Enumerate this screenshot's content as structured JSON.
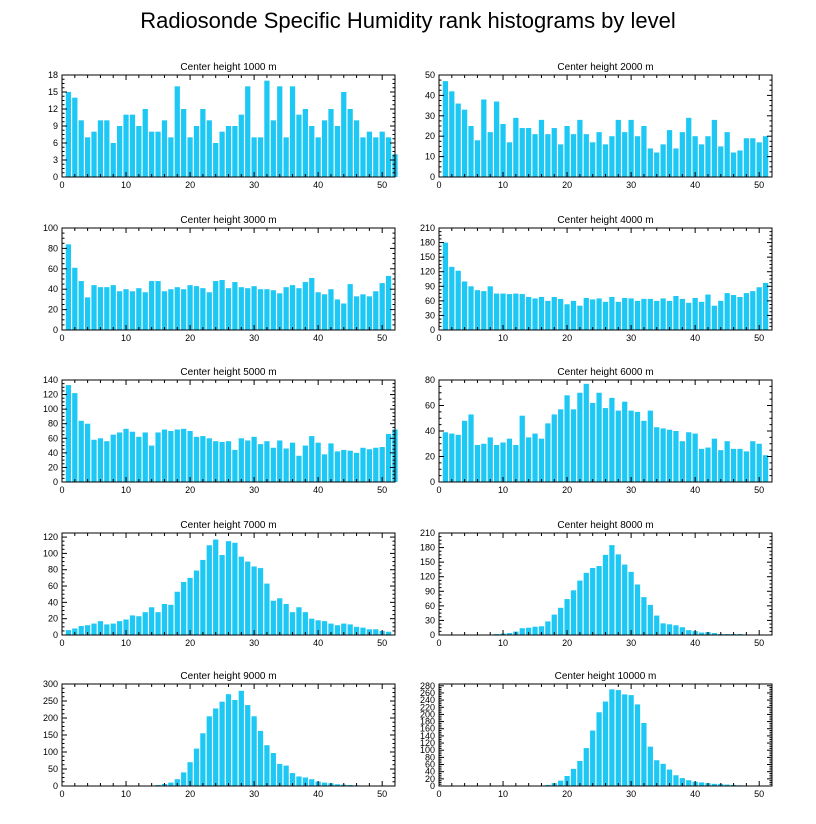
{
  "title": "Radiosonde Specific Humidity rank histograms by level",
  "colors": {
    "bar": "#1ec8f5",
    "axis": "#000000",
    "background": "#ffffff"
  },
  "chart_data": [
    {
      "type": "bar",
      "title": "Center height 1000 m",
      "xlim": [
        0,
        52
      ],
      "ylim": [
        0,
        18
      ],
      "yticks": [
        0,
        3,
        6,
        9,
        12,
        15,
        18
      ],
      "xticks": [
        0,
        10,
        20,
        30,
        40,
        50
      ],
      "values": [
        15,
        14,
        10,
        7,
        8,
        10,
        10,
        6,
        9,
        11,
        11,
        9,
        12,
        8,
        8,
        10,
        7,
        16,
        12,
        7,
        9,
        12,
        10,
        6,
        8,
        9,
        9,
        11,
        16,
        7,
        7,
        17,
        10,
        16,
        7,
        16,
        11,
        12,
        9,
        7,
        10,
        12,
        9,
        15,
        12,
        10,
        7,
        8,
        7,
        8,
        7,
        4
      ]
    },
    {
      "type": "bar",
      "title": "Center height 2000 m",
      "xlim": [
        0,
        52
      ],
      "ylim": [
        0,
        50
      ],
      "yticks": [
        0,
        10,
        20,
        30,
        40,
        50
      ],
      "xticks": [
        0,
        10,
        20,
        30,
        40,
        50
      ],
      "values": [
        47,
        42,
        36,
        33,
        25,
        18,
        38,
        22,
        37,
        26,
        17,
        29,
        24,
        24,
        21,
        28,
        21,
        24,
        16,
        25,
        21,
        28,
        21,
        17,
        22,
        16,
        20,
        28,
        22,
        28,
        20,
        25,
        14,
        12,
        16,
        23,
        14,
        22,
        29,
        20,
        16,
        20,
        28,
        15,
        22,
        12,
        13,
        19,
        19,
        17,
        20
      ]
    },
    {
      "type": "bar",
      "title": "Center height 3000 m",
      "xlim": [
        0,
        52
      ],
      "ylim": [
        0,
        100
      ],
      "yticks": [
        0,
        20,
        40,
        60,
        80,
        100
      ],
      "xticks": [
        0,
        10,
        20,
        30,
        40,
        50
      ],
      "values": [
        84,
        61,
        48,
        32,
        44,
        42,
        42,
        44,
        38,
        40,
        38,
        41,
        37,
        48,
        48,
        38,
        40,
        42,
        40,
        44,
        43,
        41,
        37,
        48,
        49,
        41,
        47,
        42,
        41,
        43,
        40,
        40,
        39,
        36,
        42,
        44,
        41,
        47,
        51,
        37,
        35,
        40,
        30,
        26,
        45,
        33,
        35,
        33,
        38,
        46,
        53
      ]
    },
    {
      "type": "bar",
      "title": "Center height 4000 m",
      "xlim": [
        0,
        52
      ],
      "ylim": [
        0,
        210
      ],
      "yticks": [
        0,
        30,
        60,
        90,
        120,
        150,
        180,
        210
      ],
      "xticks": [
        0,
        10,
        20,
        30,
        40,
        50
      ],
      "values": [
        180,
        130,
        122,
        100,
        90,
        82,
        80,
        90,
        75,
        75,
        74,
        75,
        74,
        68,
        65,
        68,
        60,
        68,
        64,
        53,
        60,
        50,
        66,
        63,
        65,
        58,
        68,
        58,
        66,
        65,
        60,
        64,
        64,
        60,
        65,
        60,
        70,
        64,
        56,
        66,
        58,
        73,
        50,
        60,
        76,
        72,
        68,
        76,
        80,
        88,
        97
      ]
    },
    {
      "type": "bar",
      "title": "Center height 5000 m",
      "xlim": [
        0,
        52
      ],
      "ylim": [
        0,
        140
      ],
      "yticks": [
        0,
        20,
        40,
        60,
        80,
        100,
        120,
        140
      ],
      "xticks": [
        0,
        10,
        20,
        30,
        40,
        50
      ],
      "values": [
        133,
        122,
        84,
        80,
        58,
        60,
        56,
        65,
        68,
        73,
        69,
        62,
        68,
        50,
        68,
        72,
        70,
        72,
        73,
        70,
        62,
        63,
        60,
        56,
        55,
        56,
        44,
        60,
        57,
        62,
        52,
        56,
        47,
        57,
        46,
        54,
        36,
        50,
        63,
        54,
        38,
        53,
        42,
        44,
        43,
        40,
        47,
        45,
        47,
        48,
        66,
        72
      ]
    },
    {
      "type": "bar",
      "title": "Center height 6000 m",
      "xlim": [
        0,
        52
      ],
      "ylim": [
        0,
        80
      ],
      "yticks": [
        0,
        20,
        40,
        60,
        80
      ],
      "xticks": [
        0,
        10,
        20,
        30,
        40,
        50
      ],
      "values": [
        39,
        38,
        37,
        48,
        53,
        29,
        30,
        35,
        29,
        31,
        34,
        29,
        52,
        35,
        38,
        34,
        46,
        53,
        57,
        68,
        57,
        70,
        77,
        62,
        70,
        58,
        66,
        56,
        63,
        56,
        55,
        48,
        56,
        43,
        42,
        41,
        40,
        32,
        39,
        38,
        26,
        27,
        34,
        25,
        32,
        26,
        26,
        24,
        32,
        30,
        21
      ]
    },
    {
      "type": "bar",
      "title": "Center height 7000 m",
      "xlim": [
        0,
        52
      ],
      "ylim": [
        0,
        125
      ],
      "yticks": [
        0,
        20,
        40,
        60,
        80,
        100,
        120
      ],
      "xticks": [
        0,
        10,
        20,
        30,
        40,
        50
      ],
      "values": [
        6,
        8,
        11,
        12,
        14,
        17,
        13,
        14,
        17,
        19,
        24,
        23,
        28,
        34,
        28,
        38,
        37,
        53,
        65,
        70,
        79,
        92,
        110,
        117,
        98,
        115,
        113,
        96,
        90,
        84,
        82,
        63,
        42,
        45,
        38,
        28,
        34,
        28,
        20,
        18,
        17,
        14,
        12,
        14,
        13,
        10,
        9,
        7,
        7,
        5,
        4
      ]
    },
    {
      "type": "bar",
      "title": "Center height 8000 m",
      "xlim": [
        0,
        52
      ],
      "ylim": [
        0,
        210
      ],
      "yticks": [
        0,
        30,
        60,
        90,
        120,
        150,
        180,
        210
      ],
      "xticks": [
        0,
        10,
        20,
        30,
        40,
        50
      ],
      "values": [
        0,
        0,
        0,
        0,
        0,
        0,
        1,
        1,
        2,
        3,
        4,
        7,
        14,
        15,
        17,
        18,
        28,
        42,
        56,
        74,
        92,
        112,
        128,
        138,
        142,
        165,
        185,
        166,
        145,
        130,
        104,
        78,
        62,
        40,
        24,
        22,
        20,
        16,
        10,
        8,
        5,
        6,
        4,
        2,
        2,
        2,
        2,
        1,
        1,
        0,
        0
      ]
    },
    {
      "type": "bar",
      "title": "Center height 9000 m",
      "xlim": [
        0,
        52
      ],
      "ylim": [
        0,
        300
      ],
      "yticks": [
        0,
        50,
        100,
        150,
        200,
        250,
        300
      ],
      "xticks": [
        0,
        10,
        20,
        30,
        40,
        50
      ],
      "values": [
        0,
        0,
        0,
        0,
        0,
        0,
        0,
        0,
        0,
        0,
        0,
        0,
        0,
        1,
        3,
        6,
        10,
        20,
        40,
        70,
        110,
        155,
        205,
        228,
        248,
        270,
        253,
        280,
        238,
        205,
        162,
        120,
        97,
        65,
        60,
        38,
        28,
        25,
        20,
        13,
        10,
        8,
        5,
        4,
        3,
        2,
        1,
        0,
        0,
        0,
        0
      ]
    },
    {
      "type": "bar",
      "title": "Center height 10000 m",
      "xlim": [
        0,
        52
      ],
      "ylim": [
        0,
        285
      ],
      "yticks": [
        0,
        20,
        40,
        60,
        80,
        100,
        120,
        140,
        160,
        180,
        200,
        220,
        240,
        260,
        280
      ],
      "xticks": [
        0,
        10,
        20,
        30,
        40,
        50
      ],
      "values": [
        0,
        0,
        0,
        0,
        0,
        0,
        0,
        0,
        0,
        0,
        0,
        0,
        0,
        0,
        0,
        1,
        3,
        8,
        15,
        28,
        48,
        70,
        106,
        155,
        206,
        236,
        270,
        268,
        256,
        254,
        228,
        176,
        110,
        72,
        62,
        46,
        30,
        22,
        16,
        12,
        10,
        8,
        6,
        6,
        4,
        3,
        2,
        1,
        0,
        0,
        0
      ]
    }
  ]
}
